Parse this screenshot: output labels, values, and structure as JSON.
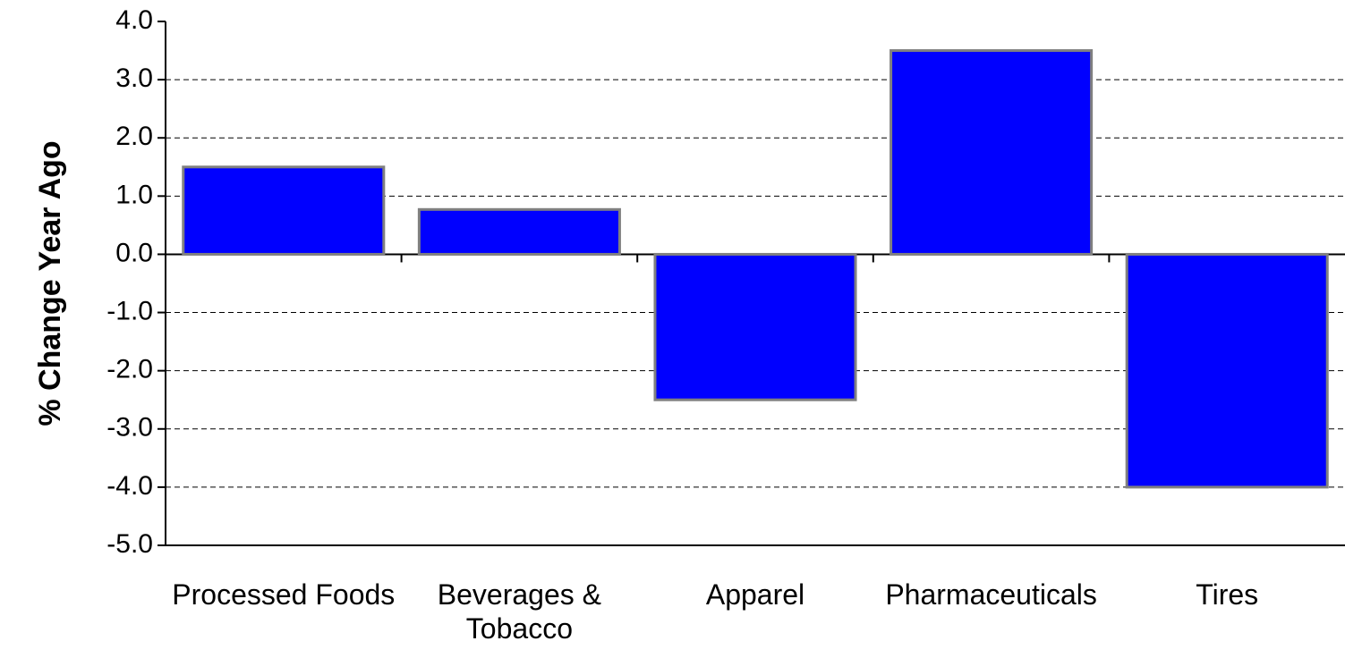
{
  "chart_data": {
    "type": "bar",
    "ylabel": "% Change Year Ago",
    "categories": [
      "Processed Foods",
      "Beverages & Tobacco",
      "Apparel",
      "Pharmaceuticals",
      "Tires"
    ],
    "values": [
      1.5,
      0.77,
      -2.5,
      3.5,
      -4.0
    ],
    "color": "#0000ff",
    "ylim": [
      -5,
      4
    ],
    "yticks": [
      {
        "value": 4,
        "label": "4.0"
      },
      {
        "value": 3,
        "label": "3.0"
      },
      {
        "value": 2,
        "label": "2.0"
      },
      {
        "value": 1,
        "label": "1.0"
      },
      {
        "value": 0,
        "label": "0.0"
      },
      {
        "value": -1,
        "label": "-1.0"
      },
      {
        "value": -2,
        "label": "-2.0"
      },
      {
        "value": -3,
        "label": "-3.0"
      },
      {
        "value": -4,
        "label": "-4.0"
      },
      {
        "value": -5,
        "label": "-5.0"
      }
    ],
    "grid": true
  }
}
